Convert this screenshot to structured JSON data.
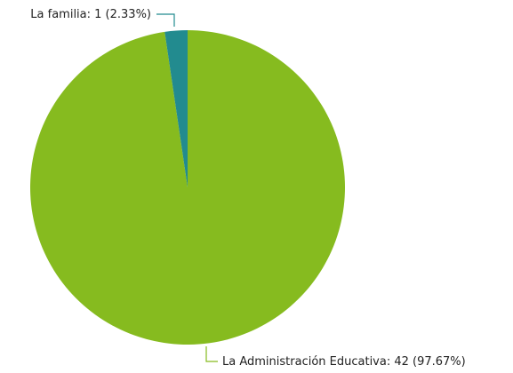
{
  "chart_data": {
    "type": "pie",
    "title": "",
    "slices": [
      {
        "label": "La Administración Educativa",
        "value": 42,
        "percent": 97.67,
        "color": "#86bb1f",
        "display": "La Administración Educativa: 42 (97.67%)"
      },
      {
        "label": "La familia",
        "value": 1,
        "percent": 2.33,
        "color": "#228b8f",
        "display": "La familia: 1 (2.33%)"
      }
    ],
    "start_angle_deg": 0,
    "direction": "clockwise",
    "legend": "none",
    "labels": "outside-with-leader-lines"
  }
}
